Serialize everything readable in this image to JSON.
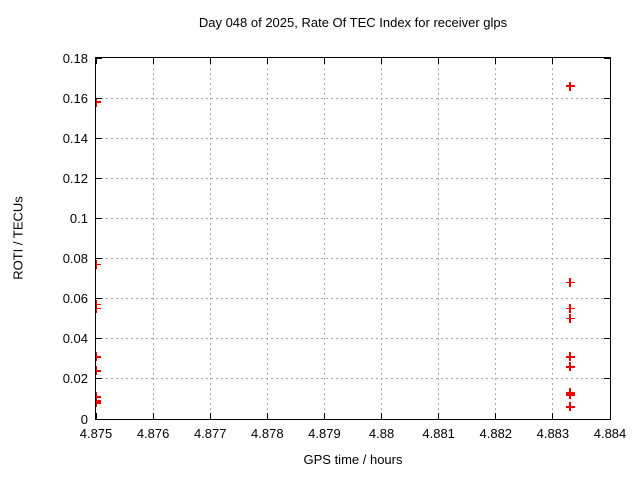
{
  "page": {
    "background_color": "#ffffff",
    "border_color": "#000000",
    "grid_color": "#a8a8a8"
  },
  "chart_data": {
    "type": "scatter",
    "title": "Day 048 of 2025, Rate Of TEC Index for receiver glps",
    "xlabel": "GPS time / hours",
    "ylabel": "ROTI / TECUs",
    "xlim": [
      4.875,
      4.884
    ],
    "ylim": [
      0,
      0.18
    ],
    "grid": true,
    "legend_position": "none",
    "x_ticks": [
      {
        "v": 4.875,
        "label": "4.875"
      },
      {
        "v": 4.876,
        "label": "4.876"
      },
      {
        "v": 4.877,
        "label": "4.877"
      },
      {
        "v": 4.878,
        "label": "4.878"
      },
      {
        "v": 4.879,
        "label": "4.879"
      },
      {
        "v": 4.88,
        "label": "4.88"
      },
      {
        "v": 4.881,
        "label": "4.881"
      },
      {
        "v": 4.882,
        "label": "4.882"
      },
      {
        "v": 4.883,
        "label": "4.883"
      },
      {
        "v": 4.884,
        "label": "4.884"
      }
    ],
    "y_ticks": [
      {
        "v": 0,
        "label": "0"
      },
      {
        "v": 0.02,
        "label": "0.02"
      },
      {
        "v": 0.04,
        "label": "0.04"
      },
      {
        "v": 0.06,
        "label": "0.06"
      },
      {
        "v": 0.08,
        "label": "0.08"
      },
      {
        "v": 0.1,
        "label": "0.1"
      },
      {
        "v": 0.12,
        "label": "0.12"
      },
      {
        "v": 0.14,
        "label": "0.14"
      },
      {
        "v": 0.16,
        "label": "0.16"
      },
      {
        "v": 0.18,
        "label": "0.18"
      }
    ],
    "marker": {
      "shape": "plus",
      "color": "#ee0000",
      "size": 9
    },
    "series": [
      {
        "name": "ROTI",
        "points": [
          [
            4.875,
            0.158
          ],
          [
            4.875,
            0.077
          ],
          [
            4.875,
            0.057
          ],
          [
            4.875,
            0.055
          ],
          [
            4.875,
            0.031
          ],
          [
            4.875,
            0.024
          ],
          [
            4.875,
            0.011
          ],
          [
            4.875,
            0.009
          ],
          [
            4.875,
            0.008
          ],
          [
            4.8833,
            0.166
          ],
          [
            4.8833,
            0.068
          ],
          [
            4.8833,
            0.055
          ],
          [
            4.8833,
            0.05
          ],
          [
            4.8833,
            0.031
          ],
          [
            4.8833,
            0.026
          ],
          [
            4.8833,
            0.013
          ],
          [
            4.8833,
            0.012
          ],
          [
            4.8833,
            0.006
          ]
        ]
      }
    ]
  }
}
